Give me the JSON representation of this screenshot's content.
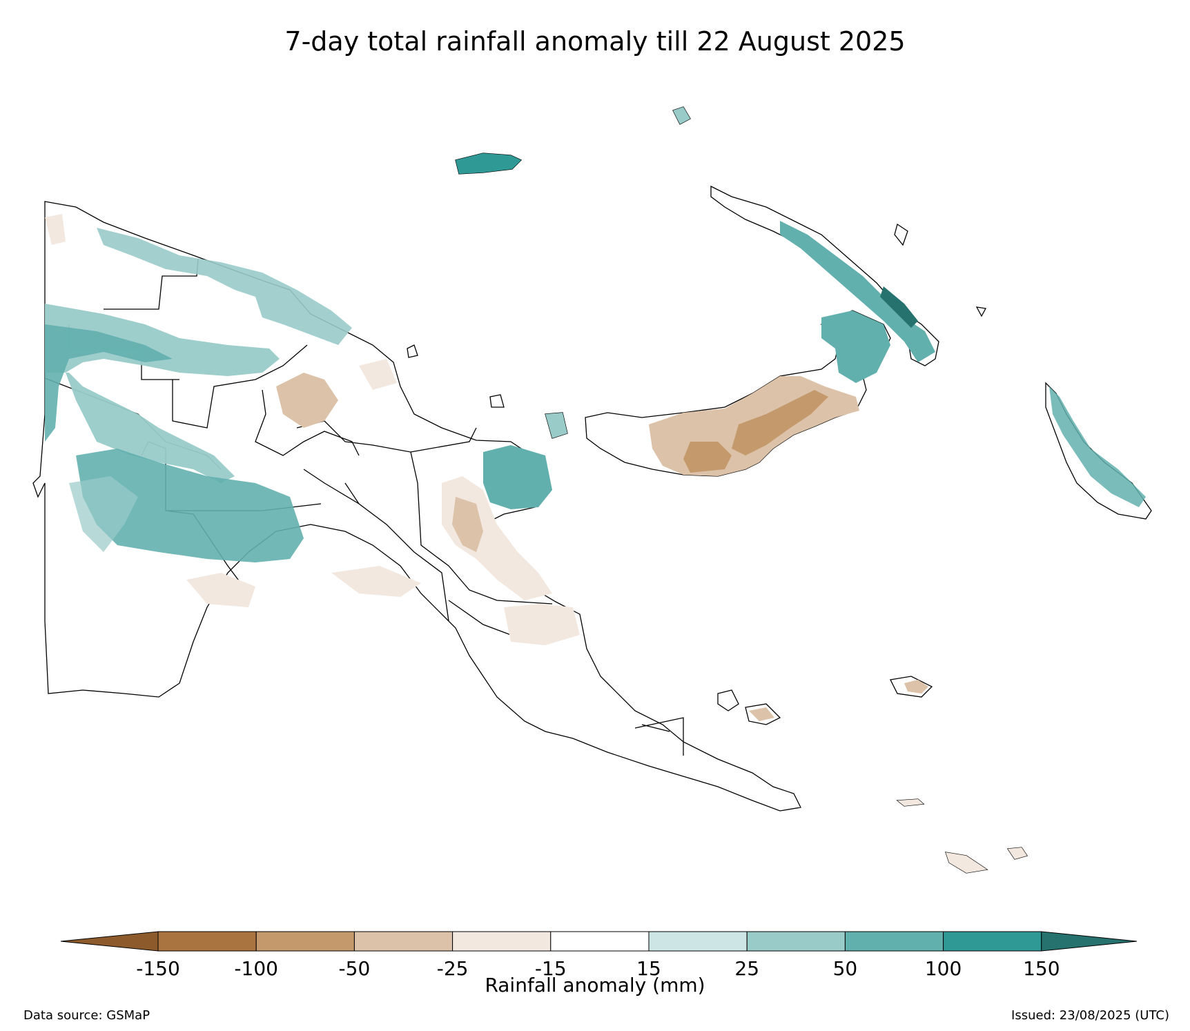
{
  "title": "7-day total rainfall anomaly till 22 August 2025",
  "colorbar": {
    "label": "Rainfall anomaly (mm)",
    "ticks": [
      "-150",
      "-100",
      "-50",
      "-25",
      "-15",
      "15",
      "25",
      "50",
      "100",
      "150"
    ],
    "bins": [
      {
        "range": "< -150",
        "color": "#8c5a2b"
      },
      {
        "range": "-150 to -100",
        "color": "#a97440"
      },
      {
        "range": "-100 to -50",
        "color": "#c49a6c"
      },
      {
        "range": "-50 to -25",
        "color": "#dcc2a8"
      },
      {
        "range": "-25 to -15",
        "color": "#f2e8df"
      },
      {
        "range": "-15 to 15",
        "color": "#ffffff"
      },
      {
        "range": "15 to 25",
        "color": "#cde6e5"
      },
      {
        "range": "25 to 50",
        "color": "#99cbc9"
      },
      {
        "range": "50 to 100",
        "color": "#62b0ae"
      },
      {
        "range": "100 to 150",
        "color": "#2f9995"
      },
      {
        "range": "> 150",
        "color": "#26726f"
      }
    ]
  },
  "footer": {
    "source": "Data source: GSMaP",
    "issued": "Issued: 23/08/2025 (UTC)"
  }
}
